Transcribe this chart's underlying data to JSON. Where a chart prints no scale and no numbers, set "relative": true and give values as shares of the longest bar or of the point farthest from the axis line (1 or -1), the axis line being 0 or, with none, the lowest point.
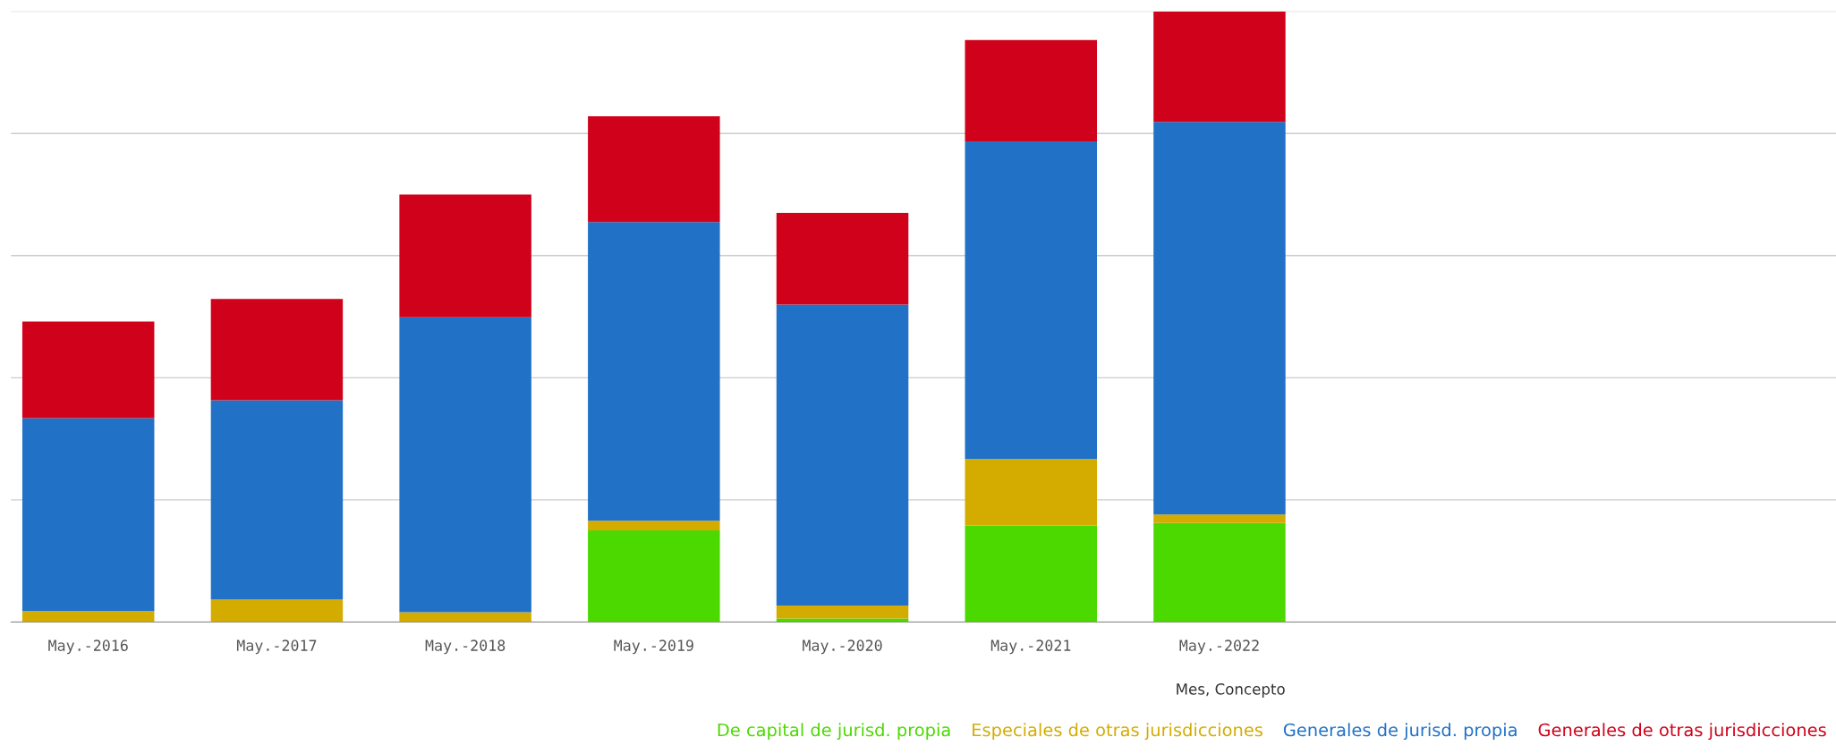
{
  "chart_data": {
    "type": "bar",
    "stacked": true,
    "relative": true,
    "grid": "y",
    "legend": "bottom right",
    "xlabel": "Mes, Concepto",
    "categories": [
      "May.-2016",
      "May.-2017",
      "May.-2018",
      "May.-2019",
      "May.-2020",
      "May.-2021",
      "May.-2022"
    ],
    "series": [
      {
        "name": "De capital de jurisd. propia",
        "color": "#4cd900",
        "values": [
          0,
          0,
          0,
          0.15,
          0.006,
          0.158,
          0.162
        ]
      },
      {
        "name": "Especiales de otras jurisdicciones",
        "color": "#d4ac00",
        "values": [
          0.018,
          0.037,
          0.016,
          0.016,
          0.021,
          0.109,
          0.014
        ]
      },
      {
        "name": "Generales de jurisd. propia",
        "color": "#2172c6",
        "values": [
          0.316,
          0.326,
          0.483,
          0.489,
          0.493,
          0.52,
          0.643
        ]
      },
      {
        "name": "Generales de otras jurisdicciones",
        "color": "#d0021b",
        "values": [
          0.158,
          0.166,
          0.201,
          0.173,
          0.15,
          0.166,
          0.181
        ]
      }
    ]
  }
}
